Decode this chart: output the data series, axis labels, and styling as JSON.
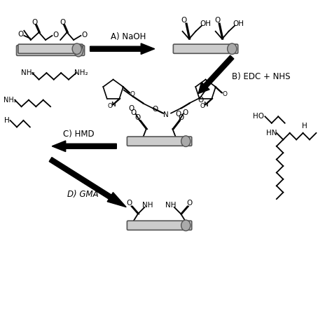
{
  "bg_color": "#ffffff",
  "arrow_color": "#000000",
  "text_color": "#1a1a1a",
  "label_A": "A) NaOH",
  "label_B": "B) EDC + NHS",
  "label_C": "C) HMD",
  "label_D": "D) GMA",
  "fig_width": 4.74,
  "fig_height": 4.74,
  "dpi": 100
}
